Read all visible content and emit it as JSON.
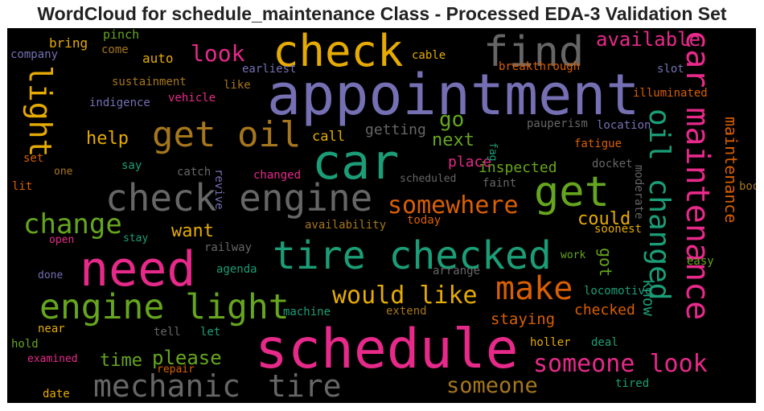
{
  "title": "WordCloud for schedule_maintenance Class - Processed EDA-3 Validation Set",
  "chart_data": {
    "type": "wordcloud",
    "title": "WordCloud for schedule_maintenance Class - Processed EDA-3 Validation Set",
    "background": "#000000",
    "words": [
      {
        "text": "appointment",
        "color": "#7570b3"
      },
      {
        "text": "schedule",
        "color": "#e7298a"
      },
      {
        "text": "check",
        "color": "#e6ab02"
      },
      {
        "text": "car",
        "color": "#1b9e77"
      },
      {
        "text": "need",
        "color": "#e7298a"
      },
      {
        "text": "tire checked",
        "color": "#1b9e77"
      },
      {
        "text": "check engine",
        "color": "#666666"
      },
      {
        "text": "engine light",
        "color": "#66a61e"
      },
      {
        "text": "find",
        "color": "#666666"
      },
      {
        "text": "get",
        "color": "#66a61e"
      },
      {
        "text": "car maintenance",
        "color": "#e7298a"
      },
      {
        "text": "oil changed",
        "color": "#1b9e77"
      },
      {
        "text": "get oil",
        "color": "#a6761d"
      },
      {
        "text": "mechanic",
        "color": "#666666"
      },
      {
        "text": "tire",
        "color": "#666666"
      },
      {
        "text": "make",
        "color": "#d95f02"
      },
      {
        "text": "light",
        "color": "#e6ab02"
      },
      {
        "text": "change",
        "color": "#66a61e"
      },
      {
        "text": "someone look",
        "color": "#e7298a"
      },
      {
        "text": "would like",
        "color": "#e6ab02"
      },
      {
        "text": "somewhere",
        "color": "#d95f02"
      },
      {
        "text": "someone",
        "color": "#a6761d"
      },
      {
        "text": "look",
        "color": "#e7298a"
      },
      {
        "text": "please",
        "color": "#66a61e"
      },
      {
        "text": "go",
        "color": "#66a61e"
      },
      {
        "text": "available",
        "color": "#e7298a"
      },
      {
        "text": "help",
        "color": "#e6ab02"
      },
      {
        "text": "time",
        "color": "#66a61e"
      },
      {
        "text": "want",
        "color": "#e6ab02"
      },
      {
        "text": "could",
        "color": "#e6ab02"
      },
      {
        "text": "next",
        "color": "#66a61e"
      },
      {
        "text": "maintenance",
        "color": "#d95f02"
      },
      {
        "text": "got",
        "color": "#66a61e"
      },
      {
        "text": "know",
        "color": "#1b9e77"
      },
      {
        "text": "getting",
        "color": "#666666"
      },
      {
        "text": "staying",
        "color": "#d95f02"
      },
      {
        "text": "inspected",
        "color": "#66a61e"
      },
      {
        "text": "place",
        "color": "#e7298a"
      },
      {
        "text": "checked",
        "color": "#d95f02"
      },
      {
        "text": "call",
        "color": "#e6ab02"
      },
      {
        "text": "auto",
        "color": "#e6ab02"
      },
      {
        "text": "bring",
        "color": "#e6ab02"
      },
      {
        "text": "pinch",
        "color": "#66a61e"
      },
      {
        "text": "company",
        "color": "#7570b3"
      },
      {
        "text": "come",
        "color": "#a6761d"
      },
      {
        "text": "earliest",
        "color": "#7570b3"
      },
      {
        "text": "cable",
        "color": "#e6ab02"
      },
      {
        "text": "slot",
        "color": "#7570b3"
      },
      {
        "text": "breakthrough",
        "color": "#d95f02"
      },
      {
        "text": "sustainment",
        "color": "#a6761d"
      },
      {
        "text": "like",
        "color": "#a6761d"
      },
      {
        "text": "illuminated",
        "color": "#d95f02"
      },
      {
        "text": "indigence",
        "color": "#7570b3"
      },
      {
        "text": "vehicle",
        "color": "#e7298a"
      },
      {
        "text": "pauperism",
        "color": "#666666"
      },
      {
        "text": "location",
        "color": "#7570b3"
      },
      {
        "text": "fatigue",
        "color": "#d95f02"
      },
      {
        "text": "fag",
        "color": "#1b9e77"
      },
      {
        "text": "set",
        "color": "#d95f02"
      },
      {
        "text": "say",
        "color": "#1b9e77"
      },
      {
        "text": "catch",
        "color": "#666666"
      },
      {
        "text": "one",
        "color": "#a6761d"
      },
      {
        "text": "changed",
        "color": "#e7298a"
      },
      {
        "text": "scheduled",
        "color": "#666666"
      },
      {
        "text": "faint",
        "color": "#666666"
      },
      {
        "text": "docket",
        "color": "#666666"
      },
      {
        "text": "book",
        "color": "#a6761d"
      },
      {
        "text": "lit",
        "color": "#d95f02"
      },
      {
        "text": "revive",
        "color": "#7570b3"
      },
      {
        "text": "moderate",
        "color": "#666666"
      },
      {
        "text": "availability",
        "color": "#a6761d"
      },
      {
        "text": "today",
        "color": "#d95f02"
      },
      {
        "text": "soonest",
        "color": "#e6ab02"
      },
      {
        "text": "open",
        "color": "#e7298a"
      },
      {
        "text": "stay",
        "color": "#1b9e77"
      },
      {
        "text": "railway",
        "color": "#666666"
      },
      {
        "text": "agenda",
        "color": "#1b9e77"
      },
      {
        "text": "work",
        "color": "#66a61e"
      },
      {
        "text": "easy",
        "color": "#66a61e"
      },
      {
        "text": "arrange",
        "color": "#666666"
      },
      {
        "text": "done",
        "color": "#7570b3"
      },
      {
        "text": "machine",
        "color": "#1b9e77"
      },
      {
        "text": "locomotive",
        "color": "#1b9e77"
      },
      {
        "text": "extend",
        "color": "#a6761d"
      },
      {
        "text": "near",
        "color": "#e6ab02"
      },
      {
        "text": "tell",
        "color": "#666666"
      },
      {
        "text": "let",
        "color": "#1b9e77"
      },
      {
        "text": "hold",
        "color": "#66a61e"
      },
      {
        "text": "examined",
        "color": "#e7298a"
      },
      {
        "text": "repair",
        "color": "#d95f02"
      },
      {
        "text": "holler",
        "color": "#e6ab02"
      },
      {
        "text": "deal",
        "color": "#1b9e77"
      },
      {
        "text": "date",
        "color": "#e6ab02"
      },
      {
        "text": "tired",
        "color": "#1b9e77"
      }
    ]
  }
}
